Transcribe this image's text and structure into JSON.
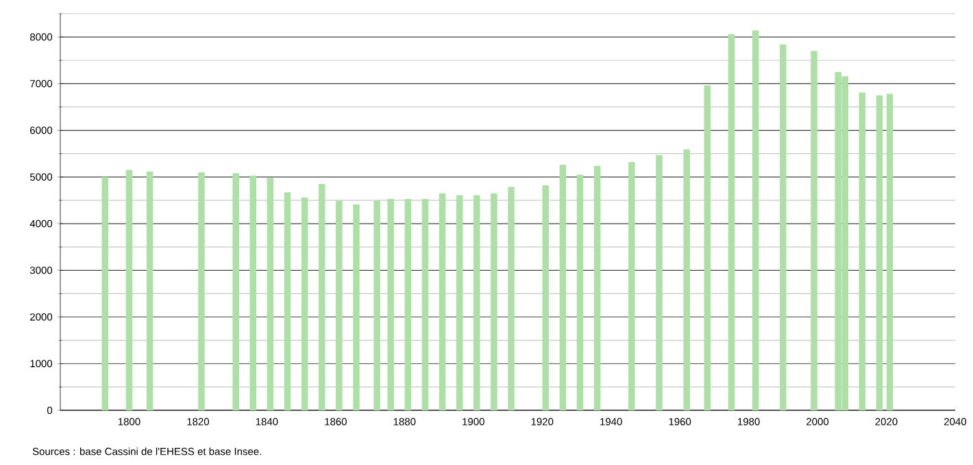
{
  "chart_data": {
    "type": "bar",
    "x": [
      1793,
      1800,
      1806,
      1821,
      1831,
      1836,
      1841,
      1846,
      1851,
      1856,
      1861,
      1866,
      1872,
      1876,
      1881,
      1886,
      1891,
      1896,
      1901,
      1906,
      1911,
      1921,
      1926,
      1931,
      1936,
      1946,
      1954,
      1962,
      1968,
      1975,
      1982,
      1990,
      1999,
      2006,
      2008,
      2013,
      2018,
      2021
    ],
    "values": [
      5000,
      5150,
      5120,
      5100,
      5080,
      5030,
      4980,
      4670,
      4560,
      4850,
      4490,
      4410,
      4490,
      4530,
      4530,
      4530,
      4650,
      4610,
      4610,
      4650,
      4790,
      4820,
      5260,
      5050,
      5240,
      5320,
      5470,
      5590,
      6960,
      8060,
      8140,
      7840,
      7700,
      7250,
      7160,
      6810,
      6750,
      6780
    ],
    "color": "#addfa6",
    "xlim": [
      1780,
      2040
    ],
    "xticks": [
      1800,
      1820,
      1840,
      1860,
      1880,
      1900,
      1920,
      1940,
      1960,
      1980,
      2000,
      2020,
      2040
    ],
    "ylim": [
      0,
      8500
    ],
    "yticks": [
      0,
      {
        "value": 500,
        "label": null
      },
      1000,
      {
        "value": 1500,
        "label": null
      },
      2000,
      {
        "value": 2500,
        "label": null
      },
      3000,
      {
        "value": 3500,
        "label": null
      },
      4000,
      {
        "value": 4500,
        "label": null
      },
      5000,
      {
        "value": 5500,
        "label": null
      },
      6000,
      {
        "value": 6500,
        "label": null
      },
      7000,
      {
        "value": 7500,
        "label": null
      },
      8000,
      {
        "value": 8500,
        "label": null
      }
    ],
    "grid": "y",
    "annotations": [
      "Sources : base Cassini de l'EHESS et base Insee."
    ]
  }
}
